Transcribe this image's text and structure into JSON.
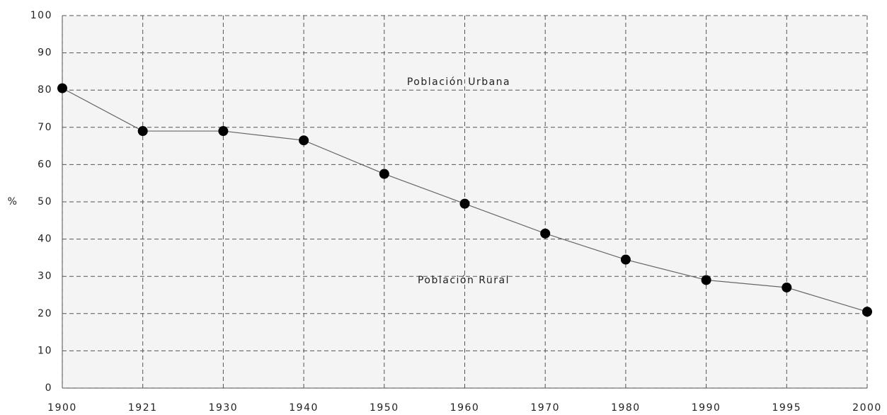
{
  "chart_data": {
    "type": "line",
    "y_label": "%",
    "annotations": [
      "Población Urbana",
      "Población Rural"
    ],
    "categories": [
      "1900",
      "1921",
      "1930",
      "1940",
      "1950",
      "1960",
      "1970",
      "1980",
      "1990",
      "1995",
      "2000"
    ],
    "series": [
      {
        "name": "Población Rural",
        "color": "#000000",
        "values": [
          80.5,
          69,
          69,
          66.5,
          57.5,
          49.5,
          41.5,
          34.5,
          29,
          27,
          20.5
        ]
      }
    ],
    "ylim": [
      0,
      100
    ],
    "yticks": [
      0,
      10,
      20,
      30,
      40,
      50,
      60,
      70,
      80,
      90,
      100
    ],
    "grid": true
  }
}
